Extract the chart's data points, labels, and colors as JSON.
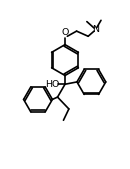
{
  "bg_color": "#ffffff",
  "line_width": 1.2,
  "font_size": 6.8,
  "figsize": [
    1.3,
    1.69
  ],
  "dpi": 100,
  "xlim": [
    0.0,
    1.0
  ],
  "ylim": [
    0.0,
    1.3
  ]
}
